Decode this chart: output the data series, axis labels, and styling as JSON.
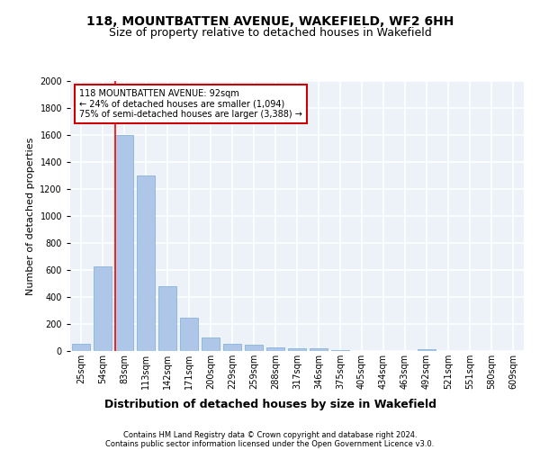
{
  "title1": "118, MOUNTBATTEN AVENUE, WAKEFIELD, WF2 6HH",
  "title2": "Size of property relative to detached houses in Wakefield",
  "xlabel": "Distribution of detached houses by size in Wakefield",
  "ylabel": "Number of detached properties",
  "bar_labels": [
    "25sqm",
    "54sqm",
    "83sqm",
    "113sqm",
    "142sqm",
    "171sqm",
    "200sqm",
    "229sqm",
    "259sqm",
    "288sqm",
    "317sqm",
    "346sqm",
    "375sqm",
    "405sqm",
    "434sqm",
    "463sqm",
    "492sqm",
    "521sqm",
    "551sqm",
    "580sqm",
    "609sqm"
  ],
  "bar_values": [
    55,
    630,
    1600,
    1300,
    480,
    245,
    100,
    55,
    45,
    28,
    20,
    18,
    10,
    0,
    0,
    0,
    15,
    0,
    0,
    0,
    0
  ],
  "bar_color": "#aec6e8",
  "bar_edge_color": "#7aadd4",
  "red_line_x": 2,
  "annotation_text": "118 MOUNTBATTEN AVENUE: 92sqm\n← 24% of detached houses are smaller (1,094)\n75% of semi-detached houses are larger (3,388) →",
  "annotation_box_color": "#ffffff",
  "annotation_box_edge": "#cc0000",
  "footer1": "Contains HM Land Registry data © Crown copyright and database right 2024.",
  "footer2": "Contains public sector information licensed under the Open Government Licence v3.0.",
  "ylim": [
    0,
    2000
  ],
  "background_color": "#edf2f9",
  "grid_color": "#ffffff",
  "title1_fontsize": 10,
  "title2_fontsize": 9,
  "tick_fontsize": 7,
  "ylabel_fontsize": 8,
  "xlabel_fontsize": 9,
  "footer_fontsize": 6,
  "annotation_fontsize": 7
}
